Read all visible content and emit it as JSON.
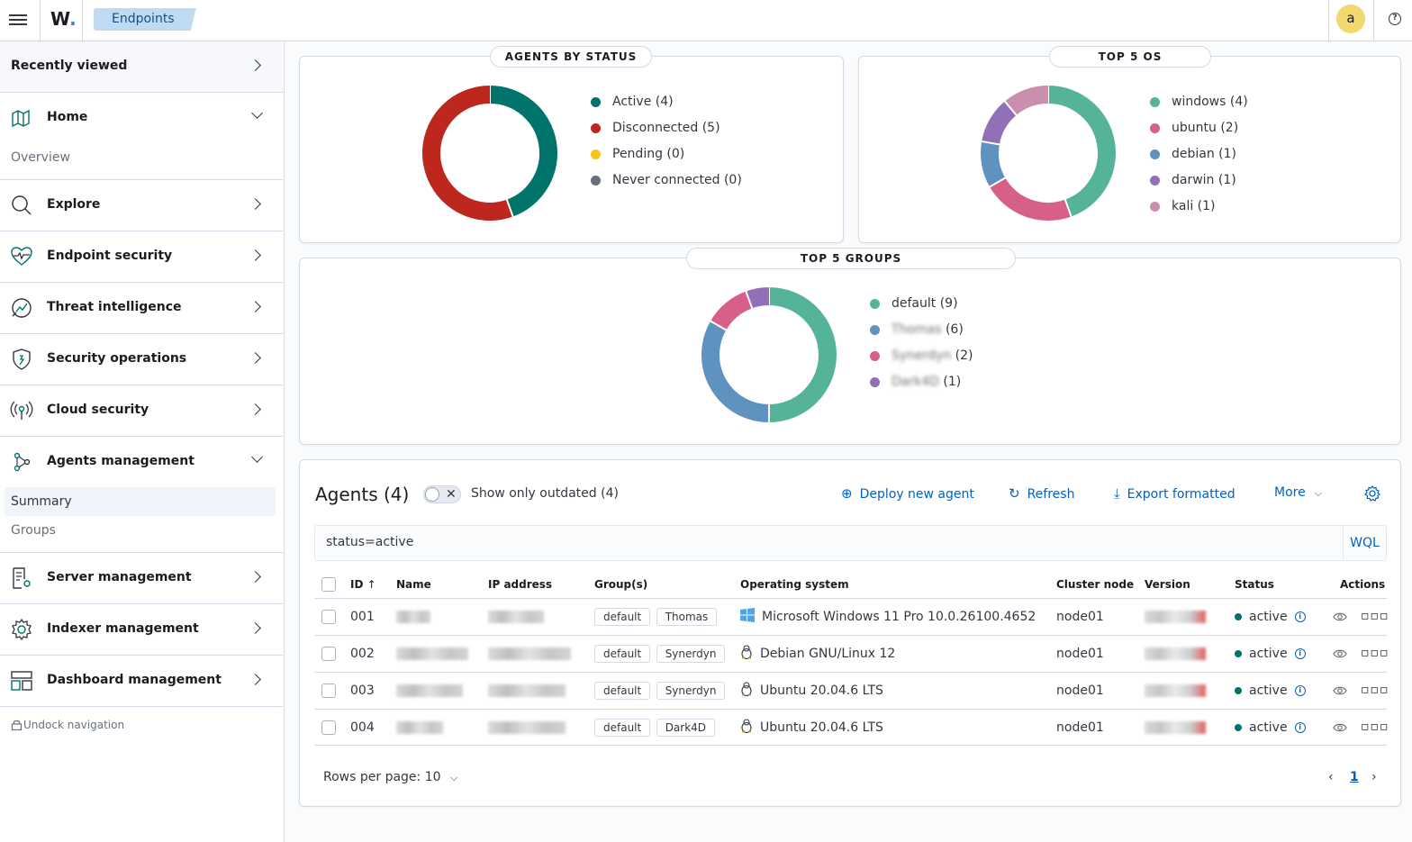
{
  "header": {
    "logo": "W",
    "breadcrumb": "Endpoints",
    "avatar_initial": "a",
    "help_glyph": "?"
  },
  "sidebar": {
    "recently_viewed": "Recently viewed",
    "home": {
      "label": "Home",
      "sub": [
        "Overview"
      ]
    },
    "explore": "Explore",
    "endpoint_security": "Endpoint security",
    "threat_intelligence": "Threat intelligence",
    "security_operations": "Security operations",
    "cloud_security": "Cloud security",
    "agents_management": {
      "label": "Agents management",
      "sub": [
        "Summary",
        "Groups"
      ],
      "selected": "Summary"
    },
    "server_management": "Server management",
    "indexer_management": "Indexer management",
    "dashboard_management": "Dashboard management",
    "undock": "Undock navigation"
  },
  "status_panel": {
    "title": "AGENTS BY STATUS",
    "legend": [
      {
        "label": "Active (4)",
        "color": "#00736b"
      },
      {
        "label": "Disconnected (5)",
        "color": "#bd271e"
      },
      {
        "label": "Pending (0)",
        "color": "#f5c518"
      },
      {
        "label": "Never connected (0)",
        "color": "#69707d"
      }
    ]
  },
  "os_panel": {
    "title": "TOP 5 OS",
    "legend": [
      {
        "label": "windows (4)",
        "color": "#54b399"
      },
      {
        "label": "ubuntu (2)",
        "color": "#d6608a"
      },
      {
        "label": "debian (1)",
        "color": "#6092c0"
      },
      {
        "label": "darwin (1)",
        "color": "#9170b8"
      },
      {
        "label": "kali (1)",
        "color": "#ca8eae"
      }
    ]
  },
  "groups_panel": {
    "title": "TOP 5 GROUPS",
    "legend": [
      {
        "label": "default",
        "count": "(9)",
        "color": "#54b399",
        "redacted": false
      },
      {
        "label": "Thomas",
        "count": "(6)",
        "color": "#6092c0",
        "redacted": true
      },
      {
        "label": "Synerdyn",
        "count": "(2)",
        "color": "#d6608a",
        "redacted": true
      },
      {
        "label": "Dark4D",
        "count": "(1)",
        "color": "#9170b8",
        "redacted": true
      }
    ]
  },
  "chart_data": [
    {
      "type": "pie",
      "title": "AGENTS BY STATUS",
      "categories": [
        "Active",
        "Disconnected",
        "Pending",
        "Never connected"
      ],
      "values": [
        4,
        5,
        0,
        0
      ],
      "colors": [
        "#00736b",
        "#bd271e",
        "#f5c518",
        "#69707d"
      ],
      "donut": true,
      "legend": "right"
    },
    {
      "type": "pie",
      "title": "TOP 5 OS",
      "categories": [
        "windows",
        "ubuntu",
        "debian",
        "darwin",
        "kali"
      ],
      "values": [
        4,
        2,
        1,
        1,
        1
      ],
      "colors": [
        "#54b399",
        "#d6608a",
        "#6092c0",
        "#9170b8",
        "#ca8eae"
      ],
      "donut": true,
      "legend": "right"
    },
    {
      "type": "pie",
      "title": "TOP 5 GROUPS",
      "categories": [
        "default",
        "Thomas",
        "Synerdyn",
        "Dark4D"
      ],
      "values": [
        9,
        6,
        2,
        1
      ],
      "colors": [
        "#54b399",
        "#6092c0",
        "#d6608a",
        "#9170b8"
      ],
      "donut": true,
      "legend": "right"
    }
  ],
  "agents": {
    "title": "Agents (4)",
    "outdated_label": "Show only outdated (4)",
    "actions": {
      "deploy": "Deploy new agent",
      "refresh": "Refresh",
      "export": "Export formatted",
      "more": "More"
    },
    "query": "status=active",
    "query_language": "WQL",
    "columns": [
      "ID",
      "Name",
      "IP address",
      "Group(s)",
      "Operating system",
      "Cluster node",
      "Version",
      "Status",
      "Actions"
    ],
    "rows": [
      {
        "id": "001",
        "groups": [
          "default",
          "Thomas"
        ],
        "os": "Microsoft Windows 11 Pro 10.0.26100.4652",
        "os_icon": "windows-icon",
        "node": "node01",
        "status": "active"
      },
      {
        "id": "002",
        "groups": [
          "default",
          "Synerdyn"
        ],
        "os": "Debian GNU/Linux 12",
        "os_icon": "linux-icon",
        "node": "node01",
        "status": "active"
      },
      {
        "id": "003",
        "groups": [
          "default",
          "Synerdyn"
        ],
        "os": "Ubuntu 20.04.6 LTS",
        "os_icon": "linux-icon",
        "node": "node01",
        "status": "active"
      },
      {
        "id": "004",
        "groups": [
          "default",
          "Dark4D"
        ],
        "os": "Ubuntu 20.04.6 LTS",
        "os_icon": "linux-icon",
        "node": "node01",
        "status": "active"
      }
    ],
    "rows_per_page": "Rows per page: 10",
    "page": "1"
  }
}
